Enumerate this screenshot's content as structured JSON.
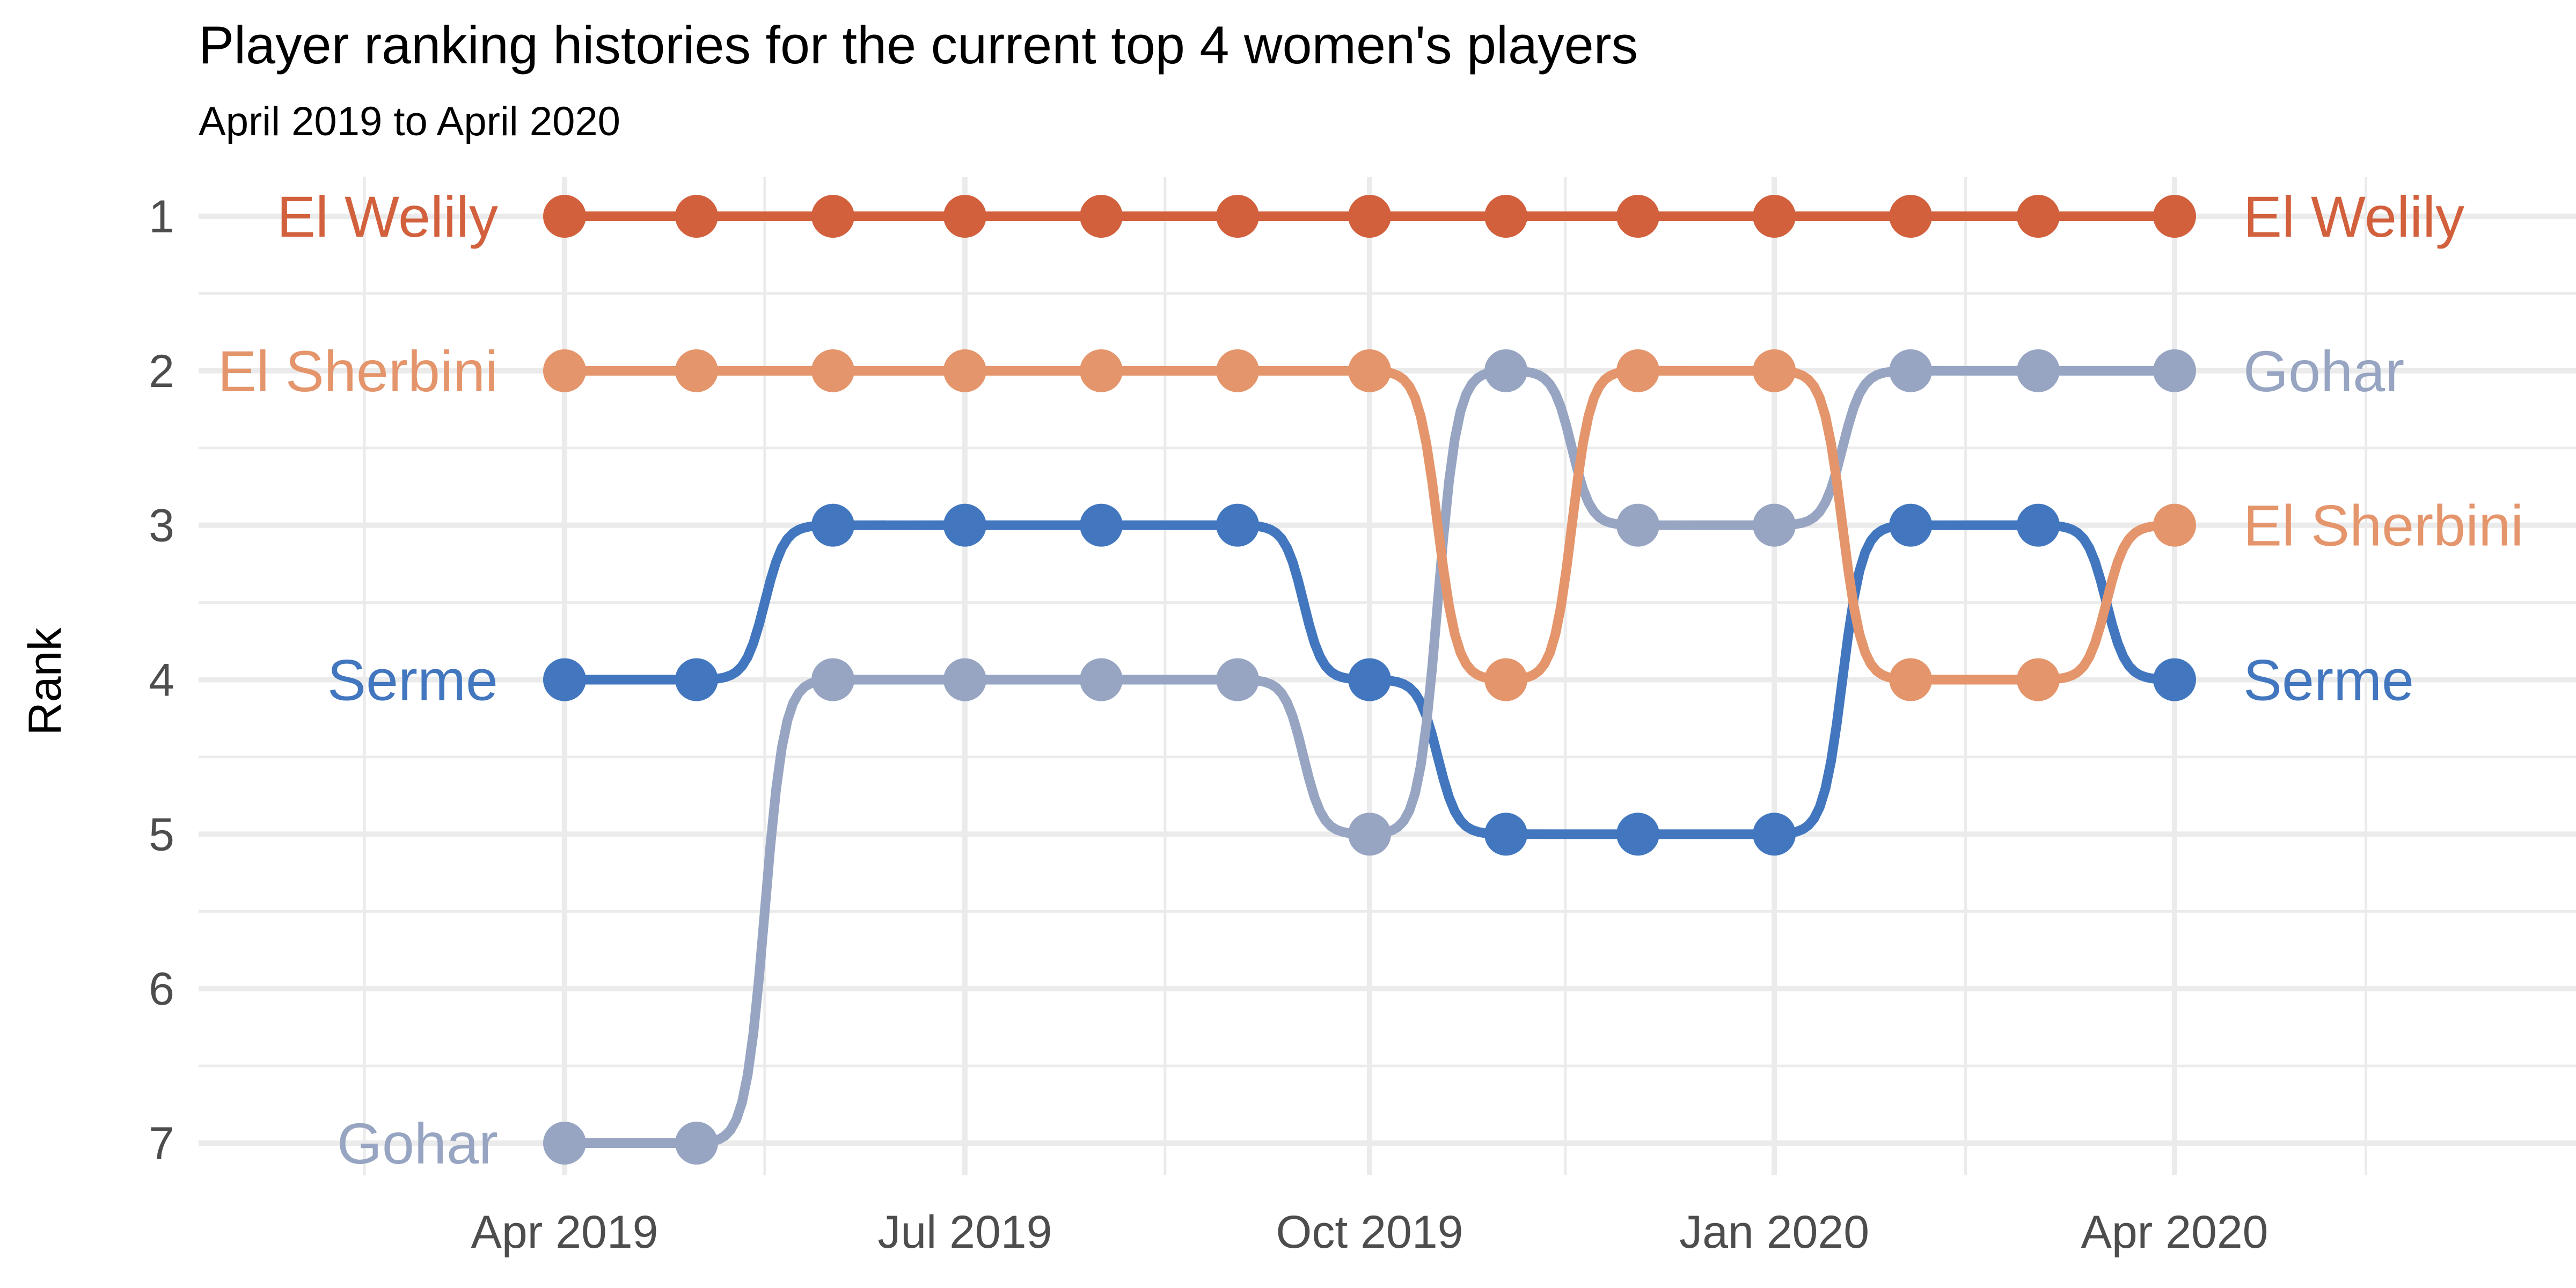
{
  "chart_data": {
    "type": "line",
    "title": "Player ranking histories for the current top 4 women's players",
    "subtitle": "April 2019 to April 2020",
    "xlabel": "",
    "ylabel": "Rank",
    "x_ticks": [
      "Apr 2019",
      "Jul 2019",
      "Oct 2019",
      "Jan 2020",
      "Apr 2020"
    ],
    "x_tick_dates": [
      "2019-04-01",
      "2019-07-01",
      "2019-10-01",
      "2020-01-01",
      "2020-04-01"
    ],
    "y_ticks": [
      "1",
      "2",
      "3",
      "4",
      "5",
      "6",
      "7"
    ],
    "ylim": [
      1,
      7
    ],
    "y_reversed": true,
    "grid": true,
    "x": [
      "2019-04-01",
      "2019-05-01",
      "2019-06-01",
      "2019-07-01",
      "2019-08-01",
      "2019-09-01",
      "2019-10-01",
      "2019-11-01",
      "2019-12-01",
      "2020-01-01",
      "2020-02-01",
      "2020-03-01",
      "2020-04-01"
    ],
    "series": [
      {
        "name": "El Welily",
        "color": "#d2603d",
        "values": [
          1,
          1,
          1,
          1,
          1,
          1,
          1,
          1,
          1,
          1,
          1,
          1,
          1
        ]
      },
      {
        "name": "El Sherbini",
        "color": "#e4956b",
        "values": [
          2,
          2,
          2,
          2,
          2,
          2,
          2,
          4,
          2,
          2,
          4,
          4,
          3
        ]
      },
      {
        "name": "Gohar",
        "color": "#97a5c2",
        "values": [
          7,
          7,
          4,
          4,
          4,
          4,
          5,
          2,
          3,
          3,
          2,
          2,
          2
        ]
      },
      {
        "name": "Serme",
        "color": "#4277bf",
        "values": [
          4,
          4,
          3,
          3,
          3,
          3,
          4,
          5,
          5,
          5,
          3,
          3,
          4
        ]
      }
    ]
  }
}
